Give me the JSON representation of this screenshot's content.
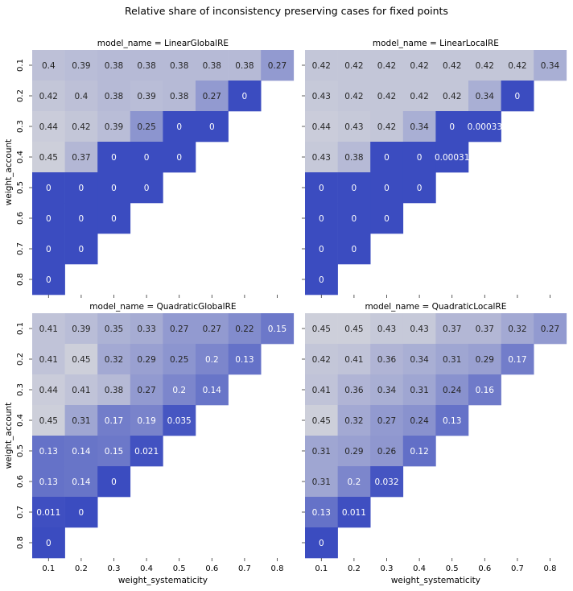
{
  "figure": {
    "title": "Relative share of inconsistency preserving cases for fixed points"
  },
  "chart_data": {
    "type": "heatmap",
    "xlabel": "weight_systematicity",
    "ylabel": "weight_account",
    "x_ticks": [
      "0.1",
      "0.2",
      "0.3",
      "0.4",
      "0.5",
      "0.6",
      "0.7",
      "0.8"
    ],
    "y_ticks": [
      "0.1",
      "0.2",
      "0.3",
      "0.4",
      "0.5",
      "0.6",
      "0.7",
      "0.8"
    ],
    "color_scale": {
      "low": "#3b4cc0",
      "mid": "#dddddd",
      "high": "#b40426",
      "vmin": 0,
      "vmax": 1
    },
    "panels": [
      {
        "title": "model_name = LinearGlobalRE",
        "values": [
          [
            "0.4",
            "0.39",
            "0.38",
            "0.38",
            "0.38",
            "0.38",
            "0.38",
            "0.27"
          ],
          [
            "0.42",
            "0.4",
            "0.38",
            "0.39",
            "0.38",
            "0.27",
            "0"
          ],
          [
            "0.44",
            "0.42",
            "0.39",
            "0.25",
            "0",
            "0"
          ],
          [
            "0.45",
            "0.37",
            "0",
            "0",
            "0"
          ],
          [
            "0",
            "0",
            "0",
            "0"
          ],
          [
            "0",
            "0",
            "0"
          ],
          [
            "0",
            "0"
          ],
          [
            "0"
          ]
        ]
      },
      {
        "title": "model_name = LinearLocalRE",
        "values": [
          [
            "0.42",
            "0.42",
            "0.42",
            "0.42",
            "0.42",
            "0.42",
            "0.42",
            "0.34"
          ],
          [
            "0.43",
            "0.42",
            "0.42",
            "0.42",
            "0.42",
            "0.34",
            "0"
          ],
          [
            "0.44",
            "0.43",
            "0.42",
            "0.34",
            "0",
            "0.00033"
          ],
          [
            "0.43",
            "0.38",
            "0",
            "0",
            "0.00031"
          ],
          [
            "0",
            "0",
            "0",
            "0"
          ],
          [
            "0",
            "0",
            "0"
          ],
          [
            "0",
            "0"
          ],
          [
            "0"
          ]
        ]
      },
      {
        "title": "model_name = QuadraticGlobalRE",
        "values": [
          [
            "0.41",
            "0.39",
            "0.35",
            "0.33",
            "0.27",
            "0.27",
            "0.22",
            "0.15"
          ],
          [
            "0.41",
            "0.45",
            "0.32",
            "0.29",
            "0.25",
            "0.2",
            "0.13"
          ],
          [
            "0.44",
            "0.41",
            "0.38",
            "0.27",
            "0.2",
            "0.14"
          ],
          [
            "0.45",
            "0.31",
            "0.17",
            "0.19",
            "0.035"
          ],
          [
            "0.13",
            "0.14",
            "0.15",
            "0.021"
          ],
          [
            "0.13",
            "0.14",
            "0"
          ],
          [
            "0.011",
            "0"
          ],
          [
            "0"
          ]
        ]
      },
      {
        "title": "model_name = QuadraticLocalRE",
        "values": [
          [
            "0.45",
            "0.45",
            "0.43",
            "0.43",
            "0.37",
            "0.37",
            "0.32",
            "0.27"
          ],
          [
            "0.42",
            "0.41",
            "0.36",
            "0.34",
            "0.31",
            "0.29",
            "0.17"
          ],
          [
            "0.41",
            "0.36",
            "0.34",
            "0.31",
            "0.24",
            "0.16"
          ],
          [
            "0.45",
            "0.32",
            "0.27",
            "0.24",
            "0.13"
          ],
          [
            "0.31",
            "0.29",
            "0.26",
            "0.12"
          ],
          [
            "0.31",
            "0.2",
            "0.032"
          ],
          [
            "0.13",
            "0.011"
          ],
          [
            "0"
          ]
        ]
      }
    ]
  }
}
